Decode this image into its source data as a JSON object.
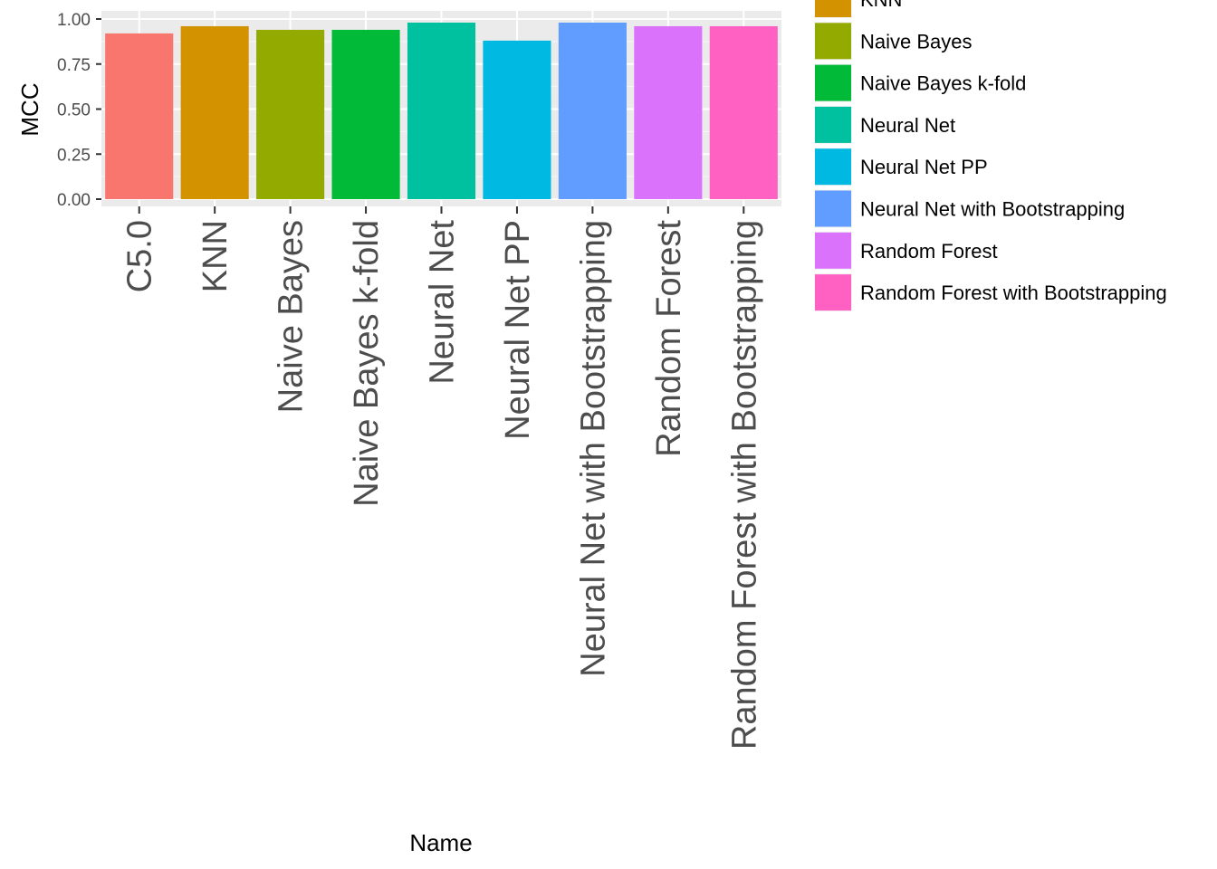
{
  "chart_data": {
    "type": "bar",
    "categories": [
      "C5.0",
      "KNN",
      "Naive Bayes",
      "Naive Bayes k-fold",
      "Neural Net",
      "Neural Net PP",
      "Neural Net with Bootstrapping",
      "Random Forest",
      "Random Forest with Bootstrapping"
    ],
    "values": [
      0.92,
      0.96,
      0.94,
      0.94,
      0.98,
      0.88,
      0.98,
      0.96,
      0.96
    ],
    "colors": [
      "#F8766D",
      "#D39200",
      "#93AA00",
      "#00BA38",
      "#00C19F",
      "#00B9E3",
      "#619CFF",
      "#DB72FB",
      "#FF61C3"
    ],
    "xlabel": "Name",
    "ylabel": "MCC",
    "ylim": [
      0,
      1
    ],
    "yticks": [
      "0.00",
      "0.25",
      "0.50",
      "0.75",
      "1.00"
    ],
    "ytick_values": [
      0,
      0.25,
      0.5,
      0.75,
      1.0
    ],
    "grid": true,
    "legend": {
      "placement": "right",
      "entries": [
        "KNN",
        "Naive Bayes",
        "Naive Bayes k-fold",
        "Neural Net",
        "Neural Net PP",
        "Neural Net with Bootstrapping",
        "Random Forest",
        "Random Forest with Bootstrapping"
      ],
      "colors": [
        "#D39200",
        "#93AA00",
        "#00BA38",
        "#00C19F",
        "#00B9E3",
        "#619CFF",
        "#DB72FB",
        "#FF61C3"
      ]
    }
  }
}
